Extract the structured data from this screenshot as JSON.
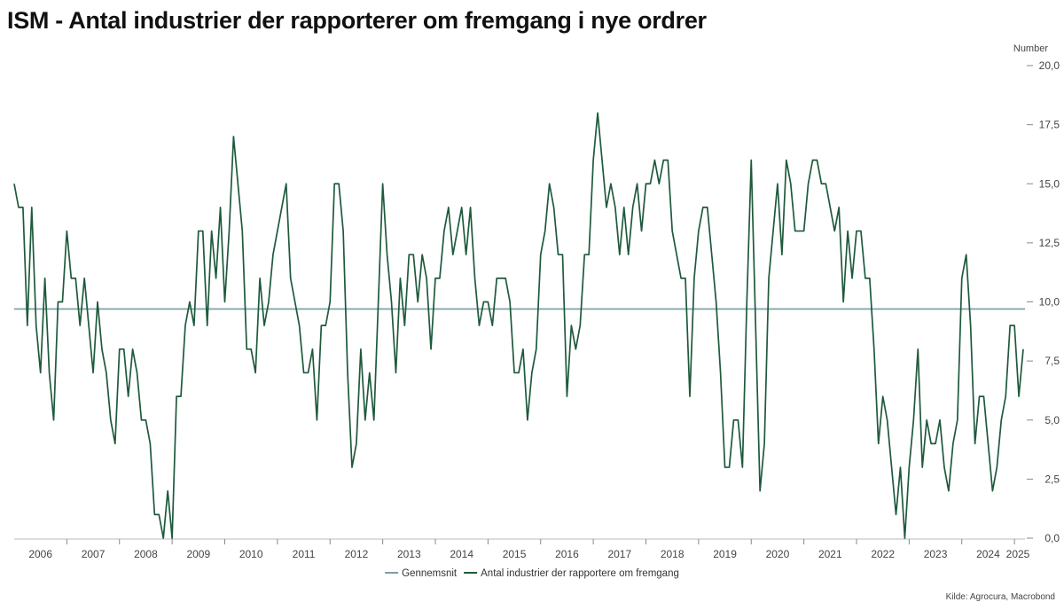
{
  "chart_data": {
    "type": "line",
    "title": "ISM - Antal industrier der rapporterer om fremgang i nye ordrer",
    "y_unit_label": "Number",
    "y_axis_position": "right",
    "ylim": [
      0,
      20
    ],
    "y_ticks": [
      0,
      2.5,
      5,
      7.5,
      10,
      12.5,
      15,
      17.5,
      20
    ],
    "y_tick_labels": [
      "0,0",
      "2,5",
      "5,0",
      "7,5",
      "10,0",
      "12,5",
      "15,0",
      "17,5",
      "20,0"
    ],
    "x_range": [
      2006.0,
      2025.2
    ],
    "x_tick_labels": [
      "2006",
      "2007",
      "2008",
      "2009",
      "2010",
      "2011",
      "2012",
      "2013",
      "2014",
      "2015",
      "2016",
      "2017",
      "2018",
      "2019",
      "2020",
      "2021",
      "2022",
      "2023",
      "2024",
      "2025"
    ],
    "grid": false,
    "legend_position": "bottom-center",
    "source": "Kilde: Agrocura, Macrobond",
    "series": [
      {
        "name": "Gennemsnit",
        "color": "#7f9ea8",
        "type": "hline",
        "value": 9.7
      },
      {
        "name": "Antal industrier der rapportere om fremgang",
        "color": "#1e5a3c",
        "start": "2006-01",
        "frequency": "monthly",
        "values": [
          15,
          14,
          14,
          9,
          14,
          9,
          7,
          11,
          7,
          5,
          10,
          10,
          13,
          11,
          11,
          9,
          11,
          9,
          7,
          10,
          8,
          7,
          5,
          4,
          8,
          8,
          6,
          8,
          7,
          5,
          5,
          4,
          1,
          1,
          0,
          2,
          0,
          6,
          6,
          9,
          10,
          9,
          13,
          13,
          9,
          13,
          11,
          14,
          10,
          13,
          17,
          15,
          13,
          8,
          8,
          7,
          11,
          9,
          10,
          12,
          13,
          14,
          15,
          11,
          10,
          9,
          7,
          7,
          8,
          5,
          9,
          9,
          10,
          15,
          15,
          13,
          7,
          3,
          4,
          8,
          5,
          7,
          5,
          10,
          15,
          12,
          10,
          7,
          11,
          9,
          12,
          12,
          10,
          12,
          11,
          8,
          11,
          11,
          13,
          14,
          12,
          13,
          14,
          12,
          14,
          11,
          9,
          10,
          10,
          9,
          11,
          11,
          11,
          10,
          7,
          7,
          8,
          5,
          7,
          8,
          12,
          13,
          15,
          14,
          12,
          12,
          6,
          9,
          8,
          9,
          12,
          12,
          16,
          18,
          16,
          14,
          15,
          14,
          12,
          14,
          12,
          14,
          15,
          13,
          15,
          15,
          16,
          15,
          16,
          16,
          13,
          12,
          11,
          11,
          6,
          11,
          13,
          14,
          14,
          12,
          10,
          7,
          3,
          3,
          5,
          5,
          3,
          10,
          16,
          9,
          2,
          4,
          11,
          13,
          15,
          12,
          16,
          15,
          13,
          13,
          13,
          15,
          16,
          16,
          15,
          15,
          14,
          13,
          14,
          10,
          13,
          11,
          13,
          13,
          11,
          11,
          8,
          4,
          6,
          5,
          3,
          1,
          3,
          0,
          3,
          5,
          8,
          3,
          5,
          4,
          4,
          5,
          3,
          2,
          4,
          5,
          11,
          12,
          9,
          4,
          6,
          6,
          4,
          2,
          3,
          5,
          6,
          9,
          9,
          6,
          8
        ]
      }
    ]
  }
}
